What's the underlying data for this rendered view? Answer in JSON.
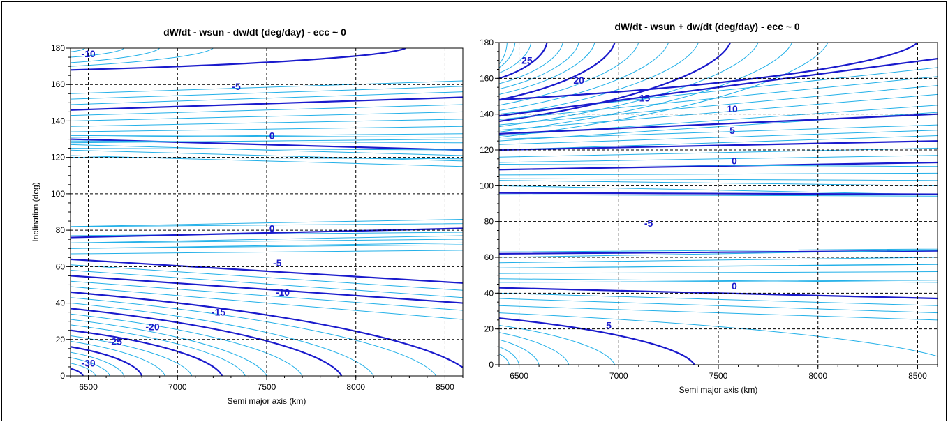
{
  "chart_data": [
    {
      "type": "contour",
      "title": "dW/dt - wsun - dw/dt (deg/day) - ecc ~ 0",
      "xlabel": "Semi major axis (km)",
      "ylabel": "Inclination (deg)",
      "xlim": [
        6400,
        8600
      ],
      "ylim": [
        0,
        180
      ],
      "xticks": [
        6500,
        7000,
        7500,
        8000,
        8500
      ],
      "yticks": [
        0,
        20,
        40,
        60,
        80,
        100,
        120,
        140,
        160,
        180
      ],
      "grid": true,
      "major_levels": [
        -30,
        -25,
        -20,
        -15,
        -10,
        -5,
        0,
        0
      ],
      "contour_labels": [
        {
          "text": "-10",
          "x": 6500,
          "y": 177
        },
        {
          "text": "-5",
          "x": 7330,
          "y": 159
        },
        {
          "text": "0",
          "x": 7530,
          "y": 132
        },
        {
          "text": "0",
          "x": 7530,
          "y": 81
        },
        {
          "text": "-5",
          "x": 7560,
          "y": 62
        },
        {
          "text": "-10",
          "x": 7590,
          "y": 46
        },
        {
          "text": "-15",
          "x": 7230,
          "y": 35
        },
        {
          "text": "-20",
          "x": 6860,
          "y": 27
        },
        {
          "text": "-25",
          "x": 6650,
          "y": 19
        },
        {
          "text": "-30",
          "x": 6500,
          "y": 7
        }
      ]
    },
    {
      "type": "contour",
      "title": "dW/dt - wsun + dw/dt (deg/day) - ecc ~ 0",
      "xlabel": "Semi major axis (km)",
      "ylabel": "",
      "xlim": [
        6400,
        8600
      ],
      "ylim": [
        0,
        180
      ],
      "xticks": [
        6500,
        7000,
        7500,
        8000,
        8500
      ],
      "yticks": [
        0,
        20,
        40,
        60,
        80,
        100,
        120,
        140,
        160,
        180
      ],
      "grid": true,
      "major_levels": [
        25,
        20,
        15,
        10,
        5,
        0,
        -5,
        0,
        5
      ],
      "contour_labels": [
        {
          "text": "25",
          "x": 6540,
          "y": 170
        },
        {
          "text": "20",
          "x": 6800,
          "y": 159
        },
        {
          "text": "15",
          "x": 7130,
          "y": 149
        },
        {
          "text": "10",
          "x": 7570,
          "y": 143
        },
        {
          "text": "5",
          "x": 7570,
          "y": 131
        },
        {
          "text": "0",
          "x": 7580,
          "y": 114
        },
        {
          "text": "-5",
          "x": 7150,
          "y": 79
        },
        {
          "text": "0",
          "x": 7580,
          "y": 44
        },
        {
          "text": "5",
          "x": 6950,
          "y": 22
        }
      ]
    }
  ]
}
